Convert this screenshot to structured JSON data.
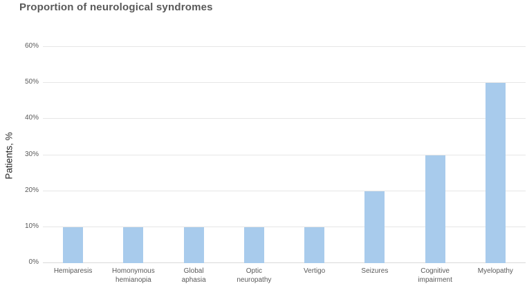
{
  "title": "Proportion of neurological syndromes",
  "chart_data": {
    "type": "bar",
    "title": "Proportion of neurological syndromes",
    "categories": [
      "Hemiparesis",
      "Homonymous hemianopia",
      "Global aphasia",
      "Optic neuropathy",
      "Vertigo",
      "Seizures",
      "Cognitive impairment",
      "Myelopathy"
    ],
    "values": [
      10,
      10,
      10,
      10,
      10,
      20,
      30,
      50
    ],
    "xlabel": "",
    "ylabel": "Patients, %",
    "ylim": [
      0,
      60
    ],
    "ytick_step": 10,
    "ytick_labels": [
      "0%",
      "10%",
      "20%",
      "30%",
      "40%",
      "50%",
      "60%"
    ],
    "grid": true,
    "legend": false,
    "bar_color": "#a8cbec",
    "gridline_color": "#e6e6e6",
    "axis_line_color": "#d9d9d9",
    "title_color": "#595959",
    "tick_label_color": "#595959"
  }
}
